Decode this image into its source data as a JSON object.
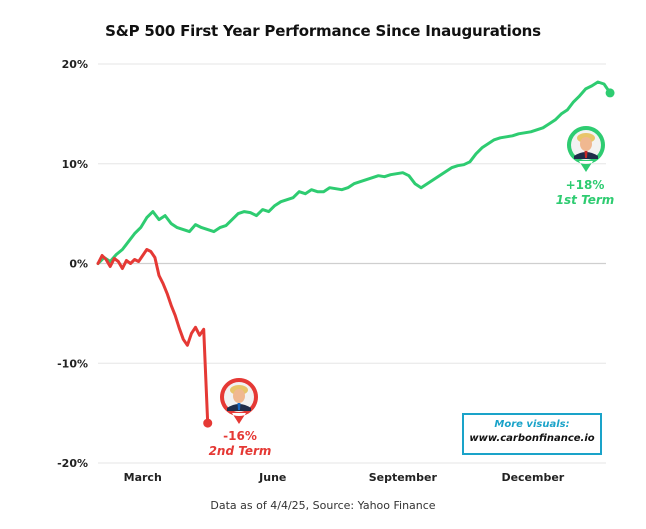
{
  "chart_data": {
    "type": "line",
    "title": "S&P 500 First Year Performance Since Inaugurations",
    "xlabel": "",
    "ylabel": "",
    "ylim": [
      -20,
      20
    ],
    "xlim": [
      0,
      250
    ],
    "x_unit": "trading days since inauguration",
    "yticks": [
      {
        "value": 20,
        "label": "20%"
      },
      {
        "value": 10,
        "label": "10%"
      },
      {
        "value": 0,
        "label": "0%"
      },
      {
        "value": -10,
        "label": "-10%"
      },
      {
        "value": -20,
        "label": "-20%"
      }
    ],
    "xticks": [
      {
        "value": 22,
        "label": "March"
      },
      {
        "value": 86,
        "label": "June"
      },
      {
        "value": 150,
        "label": "September"
      },
      {
        "value": 214,
        "label": "December"
      }
    ],
    "grid": true,
    "series": [
      {
        "name": "1st Term",
        "color": "#2ecc71",
        "x": [
          0,
          3,
          6,
          9,
          12,
          15,
          18,
          21,
          24,
          27,
          30,
          33,
          36,
          39,
          42,
          45,
          48,
          51,
          54,
          57,
          60,
          63,
          66,
          69,
          72,
          75,
          78,
          81,
          84,
          87,
          90,
          93,
          96,
          99,
          102,
          105,
          108,
          111,
          114,
          117,
          120,
          123,
          126,
          129,
          132,
          135,
          138,
          141,
          144,
          147,
          150,
          153,
          156,
          159,
          162,
          165,
          168,
          171,
          174,
          177,
          180,
          183,
          186,
          189,
          192,
          195,
          198,
          201,
          204,
          207,
          210,
          213,
          216,
          219,
          222,
          225,
          228,
          231,
          234,
          237,
          240,
          243,
          246,
          249,
          252
        ],
        "values": [
          0,
          0.6,
          0.2,
          0.9,
          1.4,
          2.2,
          3.0,
          3.6,
          4.6,
          5.2,
          4.4,
          4.8,
          4.0,
          3.6,
          3.4,
          3.2,
          3.9,
          3.6,
          3.4,
          3.2,
          3.6,
          3.8,
          4.4,
          5.0,
          5.2,
          5.1,
          4.8,
          5.4,
          5.2,
          5.8,
          6.2,
          6.4,
          6.6,
          7.2,
          7.0,
          7.4,
          7.2,
          7.2,
          7.6,
          7.5,
          7.4,
          7.6,
          8.0,
          8.2,
          8.4,
          8.6,
          8.8,
          8.7,
          8.9,
          9.0,
          9.1,
          8.8,
          8.0,
          7.6,
          8.0,
          8.4,
          8.8,
          9.2,
          9.6,
          9.8,
          9.9,
          10.2,
          11.0,
          11.6,
          12.0,
          12.4,
          12.6,
          12.7,
          12.8,
          13.0,
          13.1,
          13.2,
          13.4,
          13.6,
          14.0,
          14.4,
          15.0,
          15.4,
          16.2,
          16.8,
          17.5,
          17.8,
          18.2,
          18.0,
          17.1
        ]
      },
      {
        "name": "2nd Term",
        "color": "#e53935",
        "x": [
          0,
          2,
          4,
          6,
          8,
          10,
          12,
          14,
          16,
          18,
          20,
          22,
          24,
          26,
          28,
          30,
          32,
          34,
          36,
          38,
          40,
          42,
          44,
          46,
          48,
          50,
          52,
          54
        ],
        "values": [
          0,
          0.8,
          0.4,
          -0.3,
          0.5,
          0.2,
          -0.5,
          0.3,
          0.0,
          0.4,
          0.2,
          0.8,
          1.4,
          1.2,
          0.6,
          -1.2,
          -2.0,
          -3.0,
          -4.2,
          -5.2,
          -6.5,
          -7.6,
          -8.2,
          -7.0,
          -6.4,
          -7.2,
          -6.6,
          -16.0
        ]
      }
    ],
    "annotations": [
      {
        "series": "1st Term",
        "value_label": "+18%",
        "term_label": "1st Term"
      },
      {
        "series": "2nd Term",
        "value_label": "-16%",
        "term_label": "2nd Term"
      }
    ]
  },
  "footer": {
    "source": "Data as of 4/4/25, Source: Yahoo Finance"
  },
  "promo": {
    "title": "More visuals:",
    "url": "www.carbonfinance.io"
  }
}
